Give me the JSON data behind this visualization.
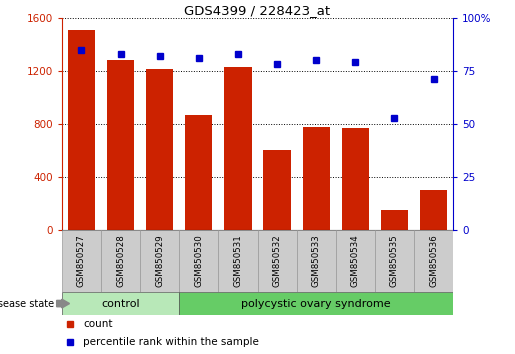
{
  "title": "GDS4399 / 228423_at",
  "samples": [
    "GSM850527",
    "GSM850528",
    "GSM850529",
    "GSM850530",
    "GSM850531",
    "GSM850532",
    "GSM850533",
    "GSM850534",
    "GSM850535",
    "GSM850536"
  ],
  "counts": [
    1510,
    1280,
    1210,
    870,
    1230,
    600,
    775,
    770,
    155,
    300
  ],
  "percentiles": [
    85,
    83,
    82,
    81,
    83,
    78,
    80,
    79,
    53,
    71
  ],
  "bar_color": "#cc2200",
  "dot_color": "#0000cc",
  "left_yticks": [
    0,
    400,
    800,
    1200,
    1600
  ],
  "right_yticks": [
    0,
    25,
    50,
    75,
    100
  ],
  "left_ylim": [
    0,
    1600
  ],
  "right_ylim": [
    0,
    100
  ],
  "control_samples": 3,
  "control_label": "control",
  "disease_label": "polycystic ovary syndrome",
  "disease_state_label": "disease state",
  "legend_count": "count",
  "legend_percentile": "percentile rank within the sample",
  "control_color": "#b8e8b8",
  "disease_color": "#66cc66",
  "tick_bg_color": "#cccccc"
}
